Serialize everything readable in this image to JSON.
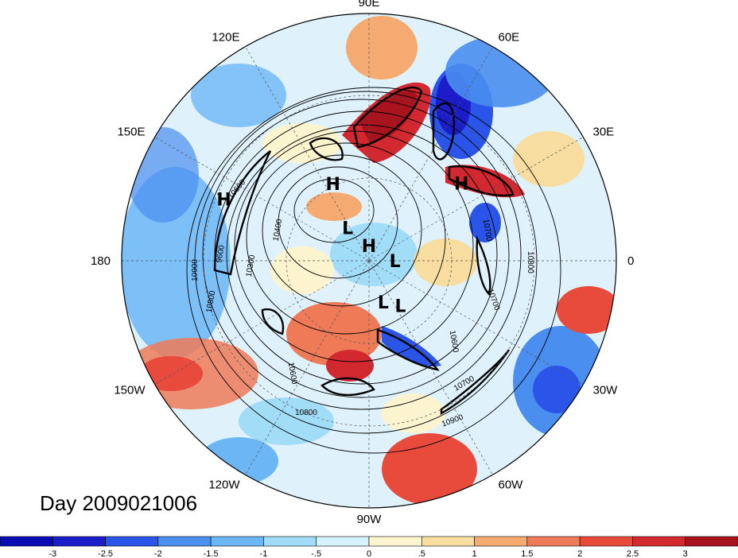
{
  "map": {
    "projection": "polar-stereographic-north",
    "longitude_labels": [
      {
        "text": "90E",
        "lon": 90
      },
      {
        "text": "60E",
        "lon": 60
      },
      {
        "text": "30E",
        "lon": 30
      },
      {
        "text": "0",
        "lon": 0
      },
      {
        "text": "30W",
        "lon": -30
      },
      {
        "text": "60W",
        "lon": -60
      },
      {
        "text": "90W",
        "lon": -90
      },
      {
        "text": "120W",
        "lon": -120
      },
      {
        "text": "150W",
        "lon": -150
      },
      {
        "text": "180",
        "lon": 180
      },
      {
        "text": "150E",
        "lon": 150
      },
      {
        "text": "120E",
        "lon": 120
      }
    ],
    "pressure_centers": [
      {
        "type": "H",
        "lon": 115,
        "lat": 52
      },
      {
        "type": "H",
        "lon": 40,
        "lat": 38
      },
      {
        "type": "H",
        "lon": 157,
        "lat": 25
      },
      {
        "type": "H",
        "lon": 90,
        "lat": 83
      },
      {
        "type": "L",
        "lon": 123,
        "lat": 72
      },
      {
        "type": "L",
        "lon": 0,
        "lat": 78
      },
      {
        "type": "L",
        "lon": -71,
        "lat": 70
      },
      {
        "type": "L",
        "lon": -55,
        "lat": 65
      }
    ],
    "contour_labels": [
      "10900",
      "10800",
      "10700",
      "10600",
      "10400",
      "10300",
      "9600",
      "10700",
      "10900",
      "10700",
      "10600",
      "10800",
      "10800",
      "10600"
    ],
    "colors": {
      "frame": "#000000",
      "graticule": "#555555"
    }
  },
  "date_label": "Day 2009021006",
  "colorbar": {
    "levels": [
      -3,
      -2.5,
      -2,
      -1.5,
      -1,
      -0.5,
      0,
      0.5,
      1,
      1.5,
      2,
      2.5,
      3
    ],
    "tick_labels": [
      "-3",
      "-2.5",
      "-2",
      "-1.5",
      "-1",
      "-.5",
      "0",
      ".5",
      "1",
      "1.5",
      "2",
      "2.5",
      "3"
    ],
    "colors": [
      "#1c1cc8",
      "#2a55e8",
      "#4a8ef0",
      "#6cb6f6",
      "#a2ddf8",
      "#d6f2fb",
      "#fbf4cf",
      "#f7dea0",
      "#f4aa70",
      "#ee7a58",
      "#e84a3c",
      "#d22830",
      "#a8141e"
    ]
  }
}
